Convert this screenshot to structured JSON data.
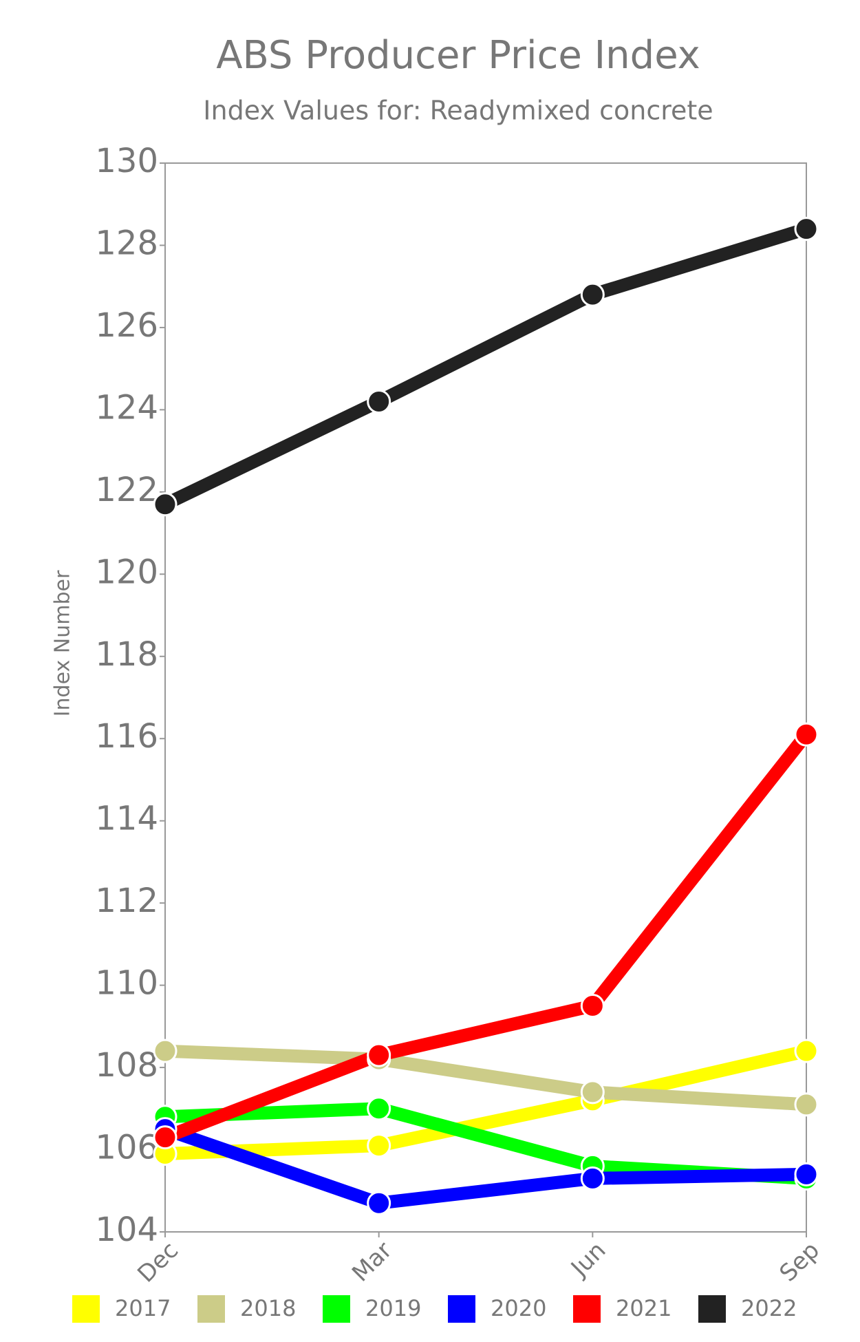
{
  "chart_data": {
    "type": "line",
    "title": "ABS Producer Price Index",
    "subtitle": "Index Values for: Readymixed concrete",
    "y_label": "Index Number",
    "categories": [
      "Dec",
      "Mar",
      "Jun",
      "Sep"
    ],
    "series": [
      {
        "name": "2017",
        "color": "#ffff00",
        "values": [
          105.9,
          106.1,
          107.2,
          108.4
        ]
      },
      {
        "name": "2018",
        "color": "#cccc88",
        "values": [
          108.4,
          108.2,
          107.4,
          107.1
        ]
      },
      {
        "name": "2019",
        "color": "#00ff00",
        "values": [
          106.8,
          107.0,
          105.6,
          105.3
        ]
      },
      {
        "name": "2020",
        "color": "#0000ff",
        "values": [
          106.5,
          104.7,
          105.3,
          105.4
        ]
      },
      {
        "name": "2021",
        "color": "#ff0000",
        "values": [
          106.3,
          108.3,
          109.5,
          116.1
        ]
      },
      {
        "name": "2022",
        "color": "#222222",
        "values": [
          121.7,
          124.2,
          126.8,
          128.4
        ]
      }
    ],
    "ylim": [
      104,
      130
    ],
    "yticks": [
      104,
      106,
      108,
      110,
      112,
      114,
      116,
      118,
      120,
      122,
      124,
      126,
      128,
      130
    ]
  }
}
